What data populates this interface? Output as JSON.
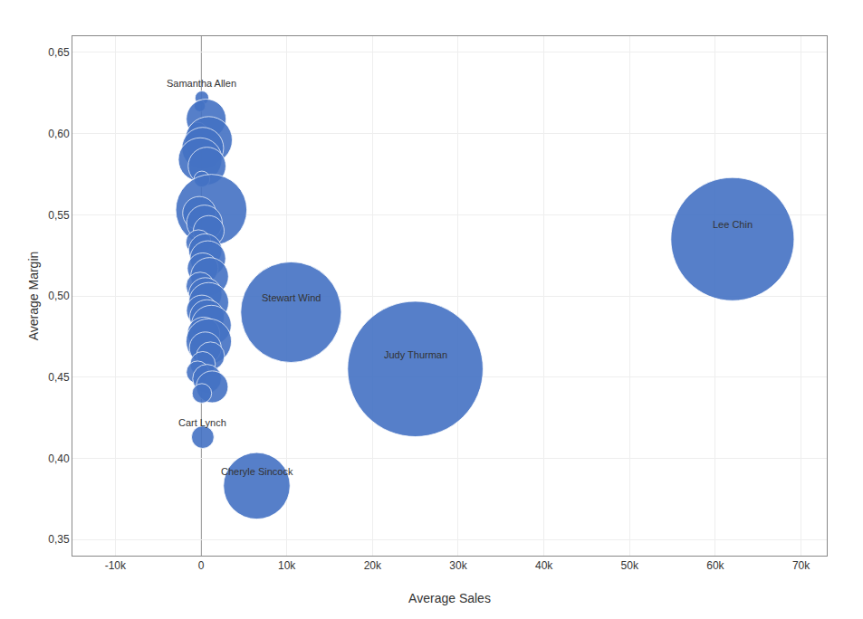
{
  "chart_data": {
    "type": "scatter",
    "xlabel": "Average Sales",
    "ylabel": "Average Margin",
    "x": [
      100,
      -150,
      600,
      -400,
      900,
      200,
      -100,
      700,
      100,
      1200,
      -200,
      400,
      900,
      -300,
      500,
      800,
      200,
      1000,
      -100,
      500,
      900,
      100,
      700,
      1200,
      300,
      900,
      500,
      1100,
      200,
      -400,
      700,
      1300,
      100,
      200,
      6500,
      10500,
      25000,
      62000
    ],
    "y": [
      0.622,
      0.617,
      0.609,
      0.601,
      0.596,
      0.591,
      0.584,
      0.58,
      0.572,
      0.553,
      0.551,
      0.545,
      0.54,
      0.533,
      0.528,
      0.523,
      0.517,
      0.512,
      0.506,
      0.501,
      0.496,
      0.491,
      0.487,
      0.482,
      0.477,
      0.472,
      0.468,
      0.463,
      0.458,
      0.453,
      0.449,
      0.444,
      0.44,
      0.413,
      0.383,
      0.49,
      0.455,
      0.535
    ],
    "sizes": [
      60,
      40,
      500,
      120,
      700,
      550,
      600,
      450,
      80,
      1600,
      350,
      400,
      300,
      200,
      350,
      400,
      300,
      450,
      250,
      350,
      500,
      300,
      380,
      500,
      330,
      650,
      320,
      250,
      200,
      160,
      260,
      320,
      120,
      160,
      1400,
      3200,
      5800,
      4800
    ],
    "labels": [
      "Samantha Allen",
      null,
      null,
      null,
      null,
      null,
      null,
      null,
      null,
      null,
      null,
      null,
      null,
      null,
      null,
      null,
      null,
      null,
      null,
      null,
      null,
      null,
      null,
      null,
      null,
      null,
      null,
      null,
      null,
      null,
      null,
      null,
      null,
      "Cart Lynch",
      "Cheryle Sincock",
      "Stewart Wind",
      "Judy Thurman",
      "Lee Chin"
    ],
    "color": "#4472C4",
    "vline_x": 0,
    "xlim": [
      -15000,
      73000
    ],
    "ylim": [
      0.34,
      0.66
    ],
    "xticks": [
      {
        "value": -10000,
        "label": "-10k"
      },
      0,
      {
        "value": 10000,
        "label": "10k"
      },
      {
        "value": 20000,
        "label": "20k"
      },
      {
        "value": 30000,
        "label": "30k"
      },
      {
        "value": 40000,
        "label": "40k"
      },
      {
        "value": 50000,
        "label": "50k"
      },
      {
        "value": 60000,
        "label": "60k"
      },
      {
        "value": 70000,
        "label": "70k"
      }
    ],
    "yticks": [
      {
        "value": 0.35,
        "label": "0,35"
      },
      {
        "value": 0.4,
        "label": "0,40"
      },
      {
        "value": 0.45,
        "label": "0,45"
      },
      {
        "value": 0.5,
        "label": "0,50"
      },
      {
        "value": 0.55,
        "label": "0,55"
      },
      {
        "value": 0.6,
        "label": "0,60"
      },
      {
        "value": 0.65,
        "label": "0,65"
      }
    ],
    "grid": true
  }
}
